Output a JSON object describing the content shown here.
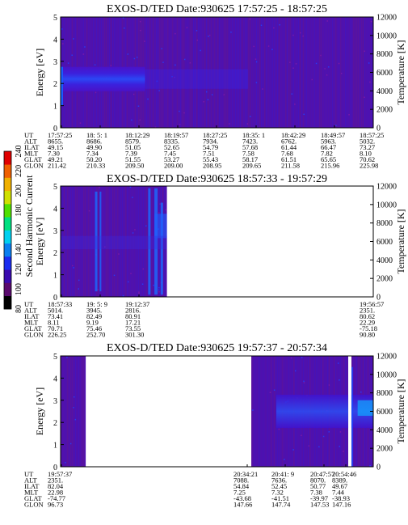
{
  "colorbar": {
    "label": "Second Harmonic Current",
    "ticks": [
      "80",
      "100",
      "120",
      "140",
      "160",
      "180",
      "200",
      "220",
      "240"
    ],
    "colors": [
      "#000000",
      "#5a0a6e",
      "#3a0ab0",
      "#1a2cf0",
      "#0a7ff0",
      "#00d0f0",
      "#00e080",
      "#50e000",
      "#d0e000",
      "#f0b000",
      "#f06000",
      "#e00000"
    ]
  },
  "chart_data": [
    {
      "type": "heatmap",
      "title": "EXOS-D/TED   Date:930625   17:57:25 - 18:57:25",
      "ylabel": "Energy [eV]",
      "y2label": "Temperature [K]",
      "ylim": [
        0,
        5
      ],
      "y2lim": [
        0,
        12000
      ],
      "yticks": [
        "0",
        "1",
        "2",
        "3",
        "4",
        "5"
      ],
      "y2ticks": [
        "0",
        "2000",
        "4000",
        "6000",
        "8000",
        "10000",
        "12000"
      ],
      "data_present": [
        [
          0,
          1
        ]
      ],
      "ephemeris": {
        "labels": [
          "UT",
          "ALT",
          "ILAT",
          "MLT",
          "GLAT",
          "GLON"
        ],
        "columns": [
          [
            "17:57:25",
            "8655.",
            "49.15",
            "7.30",
            "49.21",
            "211.42"
          ],
          [
            "18: 5: 1",
            "8686.",
            "49.90",
            "7.34",
            "50.20",
            "210.33"
          ],
          [
            "18:12:29",
            "8579.",
            "51.05",
            "7.39",
            "51.55",
            "209.50"
          ],
          [
            "18:19:57",
            "8335.",
            "52.65",
            "7.45",
            "53.27",
            "209.00"
          ],
          [
            "18:27:25",
            "7934.",
            "54.79",
            "7.51",
            "55.43",
            "208.95"
          ],
          [
            "18:35: 1",
            "7423.",
            "57.68",
            "7.58",
            "58.17",
            "209.65"
          ],
          [
            "18:42:29",
            "6762.",
            "61.44",
            "7.68",
            "61.51",
            "211.58"
          ],
          [
            "18:49:57",
            "5963.",
            "66.47",
            "7.82",
            "65.65",
            "215.96"
          ],
          [
            "18:57:25",
            "5032.",
            "73.27",
            "8.10",
            "70.62",
            "225.98"
          ]
        ]
      }
    },
    {
      "type": "heatmap",
      "title": "EXOS-D/TED   Date:930625   18:57:33 - 19:57:29",
      "ylabel": "Energy [eV]",
      "y2label": "Temperature [K]",
      "ylim": [
        0,
        5
      ],
      "y2lim": [
        0,
        12000
      ],
      "yticks": [
        "0",
        "1",
        "2",
        "3",
        "4",
        "5"
      ],
      "y2ticks": [
        "0",
        "2000",
        "4000",
        "6000",
        "8000",
        "10000",
        "12000"
      ],
      "data_present": [
        [
          0,
          0.34
        ]
      ],
      "ephemeris": {
        "labels": [
          "UT",
          "ALT",
          "ILAT",
          "MLT",
          "GLAT",
          "GLON"
        ],
        "columns": [
          [
            "18:57:33",
            "5014.",
            "73.41",
            "8.11",
            "70.71",
            "226.25"
          ],
          [
            "19: 5: 9",
            "3945.",
            "82.49",
            "9.19",
            "75.46",
            "252.70"
          ],
          [
            "19:12:37",
            "2816.",
            "80.91",
            "17.21",
            "73.55",
            "301.30"
          ],
          [
            "19:56:57",
            "2351.",
            "80.62",
            "22.29",
            "-75.18",
            "90.80"
          ]
        ]
      }
    },
    {
      "type": "heatmap",
      "title": "EXOS-D/TED   Date:930625   19:57:37 - 20:57:34",
      "ylabel": "Energy [eV]",
      "y2label": "Temperature [K]",
      "ylim": [
        0,
        5
      ],
      "y2lim": [
        0,
        12000
      ],
      "yticks": [
        "0",
        "1",
        "2",
        "3",
        "4",
        "5"
      ],
      "y2ticks": [
        "0",
        "2000",
        "4000",
        "6000",
        "8000",
        "10000",
        "12000"
      ],
      "data_present": [
        [
          0,
          0.08
        ],
        [
          0.61,
          0.92
        ],
        [
          0.93,
          1
        ]
      ],
      "ephemeris": {
        "labels": [
          "UT",
          "ALT",
          "ILAT",
          "MLT",
          "GLAT",
          "GLON"
        ],
        "columns": [
          [
            "19:57:37",
            "2351.",
            "82.04",
            "22.98",
            "-74.77",
            "96.73"
          ],
          [
            "20:34:21",
            "7088.",
            "54.84",
            "7.25",
            "-43.68",
            "147.66"
          ],
          [
            "20:41: 9",
            "7636.",
            "52.45",
            "7.32",
            "-41.51",
            "147.74"
          ],
          [
            "20:47:57",
            "8070.",
            "50.77",
            "7.38",
            "-39.97",
            "147.53"
          ],
          [
            "20:54:46",
            "8389.",
            "49.67",
            "7.44",
            "-38.93",
            "147.16"
          ]
        ]
      }
    }
  ]
}
